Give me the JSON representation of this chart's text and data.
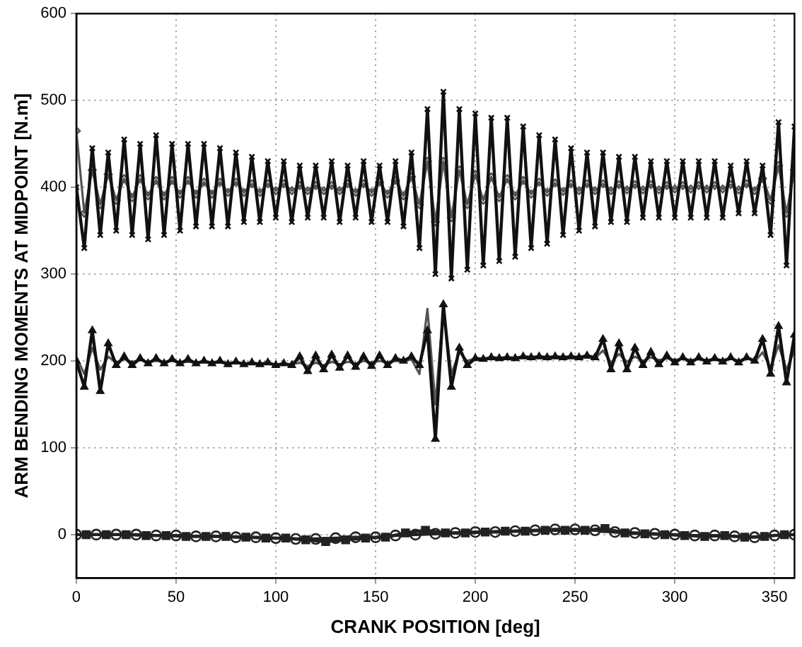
{
  "chart_data": {
    "type": "line",
    "xlabel": "CRANK POSITION [deg]",
    "ylabel": "ARM BENDING MOMENTS AT MIDPOINT [N.m]",
    "xlim": [
      0,
      360
    ],
    "xticks": [
      0,
      50,
      100,
      150,
      200,
      250,
      300,
      350
    ],
    "ylim": [
      -50,
      600
    ],
    "yticks": [
      0,
      100,
      200,
      300,
      400,
      500,
      600
    ],
    "grid": true,
    "legend": false,
    "line_style": "solid",
    "series": [
      {
        "color": "#111111",
        "marker": "cross",
        "x": [
          0,
          4,
          8,
          12,
          16,
          20,
          24,
          28,
          32,
          36,
          40,
          44,
          48,
          52,
          56,
          60,
          64,
          68,
          72,
          76,
          80,
          84,
          88,
          92,
          96,
          100,
          104,
          108,
          112,
          116,
          120,
          124,
          128,
          132,
          136,
          140,
          144,
          148,
          152,
          156,
          160,
          164,
          168,
          172,
          176,
          180,
          184,
          188,
          192,
          196,
          200,
          204,
          208,
          212,
          216,
          220,
          224,
          228,
          232,
          236,
          240,
          244,
          248,
          252,
          256,
          260,
          264,
          268,
          272,
          276,
          280,
          284,
          288,
          292,
          296,
          300,
          304,
          308,
          312,
          316,
          320,
          324,
          328,
          332,
          336,
          340,
          344,
          348,
          352,
          356,
          360
        ],
        "values": [
          400,
          330,
          445,
          345,
          440,
          350,
          455,
          345,
          450,
          340,
          460,
          345,
          450,
          350,
          450,
          355,
          450,
          355,
          445,
          355,
          440,
          360,
          435,
          360,
          430,
          365,
          430,
          360,
          425,
          365,
          425,
          365,
          430,
          360,
          425,
          365,
          430,
          360,
          425,
          360,
          430,
          355,
          440,
          330,
          490,
          300,
          510,
          295,
          490,
          305,
          485,
          310,
          480,
          315,
          480,
          320,
          470,
          330,
          460,
          335,
          455,
          345,
          445,
          350,
          440,
          355,
          440,
          360,
          435,
          360,
          435,
          365,
          430,
          365,
          430,
          365,
          430,
          365,
          430,
          365,
          430,
          365,
          425,
          370,
          430,
          370,
          425,
          345,
          475,
          310,
          470
        ]
      },
      {
        "color": "#555555",
        "marker": "diamond",
        "x": [
          0,
          4,
          8,
          12,
          16,
          20,
          24,
          28,
          32,
          36,
          40,
          44,
          48,
          52,
          56,
          60,
          64,
          68,
          72,
          76,
          80,
          84,
          88,
          92,
          96,
          100,
          104,
          108,
          112,
          116,
          120,
          124,
          128,
          132,
          136,
          140,
          144,
          148,
          152,
          156,
          160,
          164,
          168,
          172,
          176,
          180,
          184,
          188,
          192,
          196,
          200,
          204,
          208,
          212,
          216,
          220,
          224,
          228,
          232,
          236,
          240,
          244,
          248,
          252,
          256,
          260,
          264,
          268,
          272,
          276,
          280,
          284,
          288,
          292,
          296,
          300,
          304,
          308,
          312,
          316,
          320,
          324,
          328,
          332,
          336,
          340,
          344,
          348,
          352,
          356,
          360
        ],
        "values": [
          465,
          370,
          420,
          380,
          415,
          385,
          410,
          388,
          410,
          390,
          408,
          390,
          408,
          392,
          408,
          392,
          406,
          392,
          406,
          394,
          406,
          394,
          404,
          394,
          404,
          396,
          404,
          396,
          402,
          396,
          402,
          396,
          402,
          396,
          404,
          394,
          404,
          394,
          406,
          392,
          408,
          390,
          412,
          380,
          430,
          360,
          430,
          365,
          420,
          380,
          415,
          385,
          412,
          388,
          410,
          390,
          408,
          392,
          406,
          394,
          405,
          395,
          404,
          396,
          404,
          396,
          404,
          396,
          403,
          397,
          403,
          397,
          403,
          397,
          402,
          398,
          402,
          398,
          402,
          398,
          402,
          398,
          403,
          397,
          404,
          396,
          410,
          385,
          425,
          370,
          420
        ]
      },
      {
        "color": "#111111",
        "marker": "triangle",
        "x": [
          0,
          4,
          8,
          12,
          16,
          20,
          24,
          28,
          32,
          36,
          40,
          44,
          48,
          52,
          56,
          60,
          64,
          68,
          72,
          76,
          80,
          84,
          88,
          92,
          96,
          100,
          104,
          108,
          112,
          116,
          120,
          124,
          128,
          132,
          136,
          140,
          144,
          148,
          152,
          156,
          160,
          164,
          168,
          172,
          176,
          180,
          184,
          188,
          192,
          196,
          200,
          204,
          208,
          212,
          216,
          220,
          224,
          228,
          232,
          236,
          240,
          244,
          248,
          252,
          256,
          260,
          264,
          268,
          272,
          276,
          280,
          284,
          288,
          292,
          296,
          300,
          304,
          308,
          312,
          316,
          320,
          324,
          328,
          332,
          336,
          340,
          344,
          348,
          352,
          356,
          360
        ],
        "values": [
          200,
          170,
          235,
          165,
          220,
          195,
          205,
          195,
          203,
          197,
          203,
          197,
          202,
          197,
          202,
          197,
          200,
          197,
          200,
          196,
          199,
          196,
          198,
          196,
          198,
          195,
          197,
          195,
          205,
          188,
          206,
          190,
          207,
          192,
          206,
          193,
          205,
          194,
          206,
          195,
          203,
          200,
          205,
          195,
          235,
          110,
          265,
          170,
          215,
          195,
          203,
          202,
          204,
          203,
          204,
          203,
          205,
          204,
          205,
          204,
          205,
          204,
          205,
          204,
          206,
          204,
          225,
          190,
          220,
          190,
          215,
          195,
          210,
          196,
          206,
          198,
          204,
          198,
          204,
          199,
          203,
          199,
          204,
          198,
          204,
          200,
          225,
          185,
          240,
          175,
          230
        ]
      },
      {
        "color": "#555555",
        "marker": "none",
        "x": [
          0,
          4,
          8,
          12,
          16,
          20,
          24,
          28,
          32,
          36,
          40,
          44,
          48,
          52,
          56,
          60,
          64,
          68,
          72,
          76,
          80,
          84,
          88,
          92,
          96,
          100,
          104,
          108,
          112,
          116,
          120,
          124,
          128,
          132,
          136,
          140,
          144,
          148,
          152,
          156,
          160,
          164,
          168,
          172,
          176,
          180,
          184,
          188,
          192,
          196,
          200,
          204,
          208,
          212,
          216,
          220,
          224,
          228,
          232,
          236,
          240,
          244,
          248,
          252,
          256,
          260,
          264,
          268,
          272,
          276,
          280,
          284,
          288,
          292,
          296,
          300,
          304,
          308,
          312,
          316,
          320,
          324,
          328,
          332,
          336,
          340,
          344,
          348,
          352,
          356,
          360
        ],
        "values": [
          205,
          185,
          215,
          190,
          205,
          198,
          202,
          199,
          201,
          199,
          200,
          199,
          200,
          198,
          199,
          198,
          199,
          198,
          198,
          197,
          198,
          197,
          197,
          196,
          197,
          196,
          196,
          196,
          198,
          194,
          198,
          195,
          199,
          196,
          199,
          197,
          200,
          198,
          200,
          198,
          200,
          199,
          202,
          185,
          260,
          150,
          260,
          185,
          210,
          200,
          203,
          202,
          203,
          203,
          204,
          203,
          204,
          204,
          204,
          204,
          204,
          204,
          204,
          204,
          204,
          203,
          212,
          198,
          208,
          199,
          205,
          200,
          204,
          201,
          203,
          201,
          203,
          201,
          202,
          201,
          202,
          201,
          203,
          200,
          204,
          199,
          210,
          192,
          218,
          190,
          212
        ]
      },
      {
        "color": "#222222",
        "marker": "circle",
        "x": [
          0,
          10,
          20,
          30,
          40,
          50,
          60,
          70,
          80,
          90,
          100,
          110,
          120,
          130,
          140,
          150,
          160,
          170,
          180,
          190,
          200,
          210,
          220,
          230,
          240,
          250,
          260,
          270,
          280,
          290,
          300,
          310,
          320,
          330,
          340,
          350,
          360
        ],
        "values": [
          0,
          0,
          0,
          0,
          -1,
          -1,
          -2,
          -2,
          -3,
          -3,
          -4,
          -5,
          -5,
          -4,
          -3,
          -3,
          -1,
          0,
          1,
          2,
          3,
          3,
          4,
          5,
          6,
          6,
          5,
          3,
          2,
          1,
          0,
          -1,
          -1,
          -2,
          -3,
          -1,
          0
        ]
      },
      {
        "color": "#222222",
        "marker": "square",
        "x": [
          5,
          15,
          25,
          35,
          45,
          55,
          65,
          75,
          85,
          95,
          105,
          115,
          125,
          135,
          145,
          155,
          165,
          175,
          185,
          195,
          205,
          215,
          225,
          235,
          245,
          255,
          265,
          275,
          285,
          295,
          305,
          315,
          325,
          335,
          345,
          355
        ],
        "values": [
          0,
          0,
          0,
          -1,
          -1,
          -2,
          -2,
          -2,
          -3,
          -4,
          -4,
          -6,
          -8,
          -6,
          -4,
          -3,
          2,
          5,
          2,
          2,
          3,
          4,
          4,
          5,
          5,
          5,
          7,
          2,
          1,
          0,
          -1,
          -2,
          -1,
          -3,
          -2,
          0
        ]
      }
    ]
  }
}
